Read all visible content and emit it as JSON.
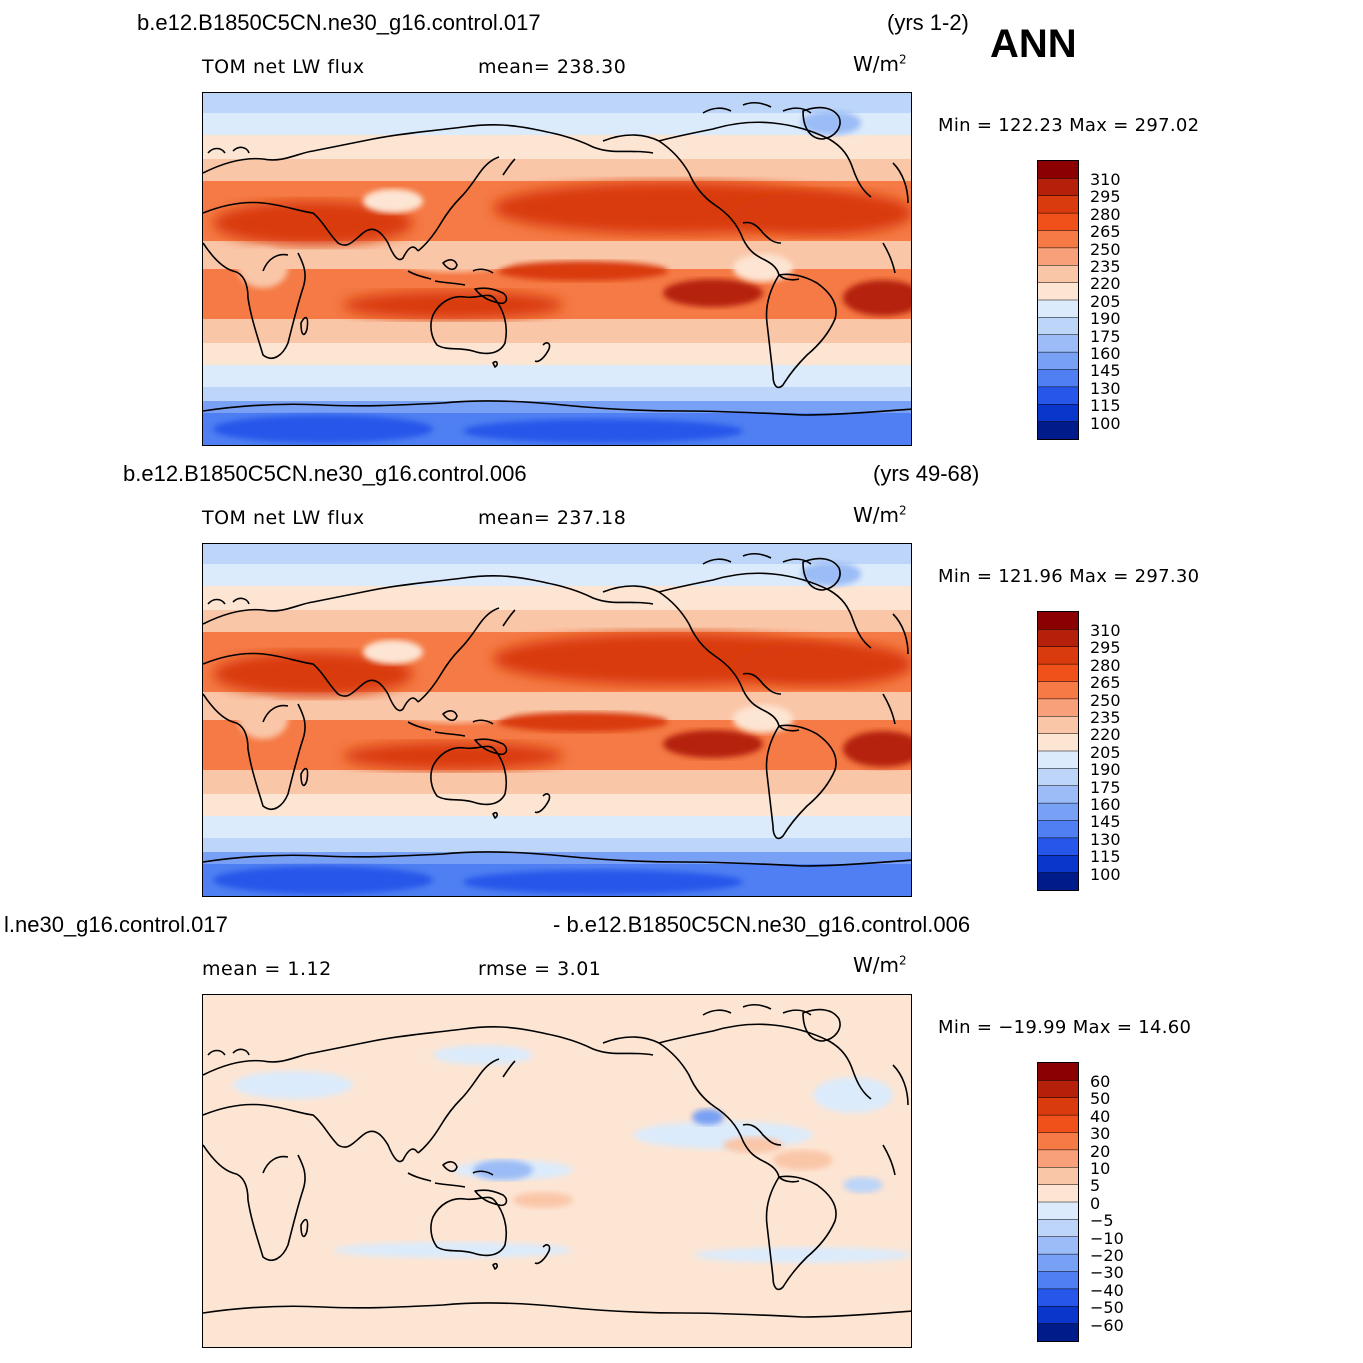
{
  "season": "ANN",
  "panels": [
    {
      "case_title": "b.e12.B1850C5CN.ne30_g16.control.017",
      "years": "(yrs 1-2)",
      "left_label": "TOM  net  LW  flux",
      "right_label": "mean=  238.30",
      "units_base": "W/m",
      "units_exp": "2",
      "minmax": "Min  =  122.23  Max  =  297.02",
      "kind": "abs",
      "colorbar_labels": [
        "310",
        "295",
        "280",
        "265",
        "250",
        "235",
        "220",
        "205",
        "190",
        "175",
        "160",
        "145",
        "130",
        "115",
        "100"
      ]
    },
    {
      "case_title": "b.e12.B1850C5CN.ne30_g16.control.006",
      "years": "(yrs 49-68)",
      "left_label": "TOM  net  LW  flux",
      "right_label": "mean=  237.18",
      "units_base": "W/m",
      "units_exp": "2",
      "minmax": "Min  =  121.96  Max  =  297.30",
      "kind": "abs",
      "colorbar_labels": [
        "310",
        "295",
        "280",
        "265",
        "250",
        "235",
        "220",
        "205",
        "190",
        "175",
        "160",
        "145",
        "130",
        "115",
        "100"
      ]
    },
    {
      "case_title": "l.ne30_g16.control.017",
      "years": "- b.e12.B1850C5CN.ne30_g16.control.006",
      "left_label": "mean  =     1.12",
      "right_label": "rmse  =     3.01",
      "units_base": "W/m",
      "units_exp": "2",
      "minmax": "Min  =  −19.99  Max  =    14.60",
      "kind": "diff",
      "colorbar_labels": [
        "60",
        "50",
        "40",
        "30",
        "20",
        "10",
        "5",
        "0",
        "−5",
        "−10",
        "−20",
        "−30",
        "−40",
        "−50",
        "−60"
      ]
    }
  ],
  "colors": {
    "abs_scale": [
      "#8b0000",
      "#b5200b",
      "#d93a0e",
      "#f0501a",
      "#f57a45",
      "#f7a07a",
      "#fac6a8",
      "#fde5d3",
      "#dcebfb",
      "#bcd5f8",
      "#9bbcf6",
      "#78a0f4",
      "#4f7ff2",
      "#2656ea",
      "#0a36cc",
      "#001b8a"
    ],
    "diff_scale": [
      "#8b0000",
      "#b5200b",
      "#d93a0e",
      "#f0501a",
      "#f57a45",
      "#f7a07a",
      "#fac6a8",
      "#fde5d3",
      "#dcebfb",
      "#bcd5f8",
      "#9bbcf6",
      "#78a0f4",
      "#4f7ff2",
      "#2656ea",
      "#0a36cc",
      "#001b8a"
    ]
  }
}
